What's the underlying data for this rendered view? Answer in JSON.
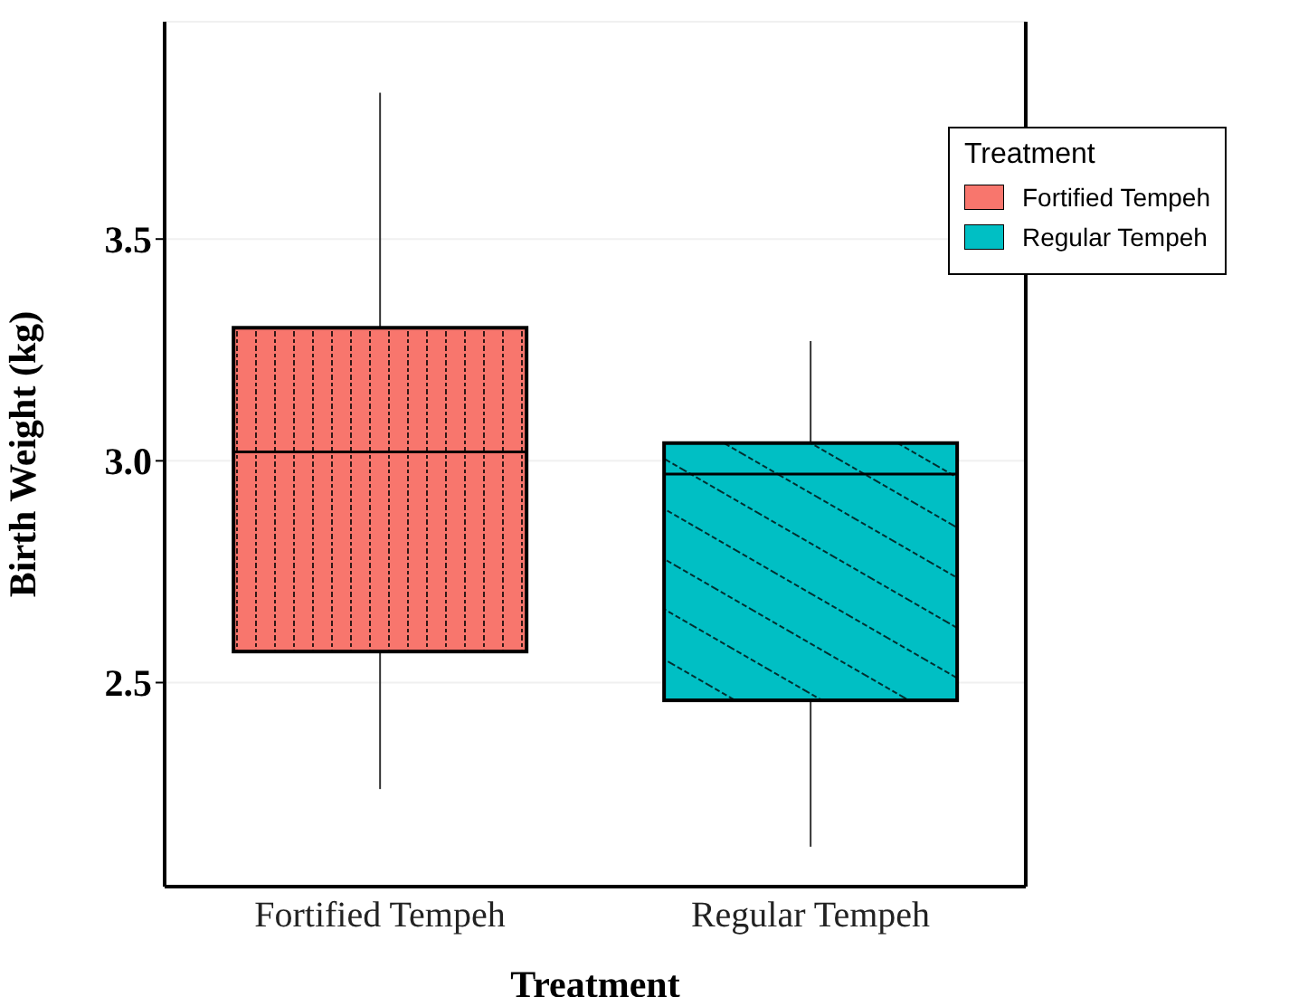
{
  "chart_data": {
    "type": "box",
    "xlabel": "Treatment",
    "ylabel": "Birth Weight (kg)",
    "legend_title": "Treatment",
    "categories": [
      "Fortified Tempeh",
      "Regular Tempeh"
    ],
    "series": [
      {
        "name": "Fortified Tempeh",
        "color": "#f8766d",
        "boxes": [
          {
            "low": 2.26,
            "q1": 2.57,
            "median": 3.02,
            "q3": 3.3,
            "high": 3.83
          },
          null
        ]
      },
      {
        "name": "Regular Tempeh",
        "color": "#00bfc4",
        "boxes": [
          null,
          {
            "low": 2.13,
            "q1": 2.46,
            "median": 2.97,
            "q3": 3.04,
            "high": 3.27
          }
        ]
      }
    ],
    "ylim": [
      2.04,
      3.99
    ],
    "yticks": [
      2.5,
      {
        "value": 3,
        "label": "3.0"
      },
      3.5
    ],
    "grid": "y",
    "legend": "top right"
  }
}
